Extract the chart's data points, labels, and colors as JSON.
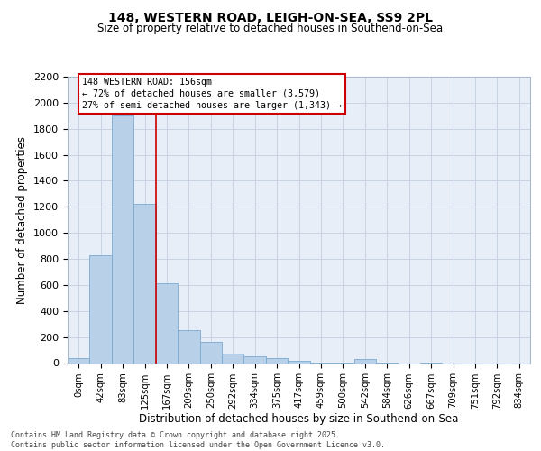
{
  "title1": "148, WESTERN ROAD, LEIGH-ON-SEA, SS9 2PL",
  "title2": "Size of property relative to detached houses in Southend-on-Sea",
  "xlabel": "Distribution of detached houses by size in Southend-on-Sea",
  "ylabel": "Number of detached properties",
  "bin_labels": [
    "0sqm",
    "42sqm",
    "83sqm",
    "125sqm",
    "167sqm",
    "209sqm",
    "250sqm",
    "292sqm",
    "334sqm",
    "375sqm",
    "417sqm",
    "459sqm",
    "500sqm",
    "542sqm",
    "584sqm",
    "626sqm",
    "667sqm",
    "709sqm",
    "751sqm",
    "792sqm",
    "834sqm"
  ],
  "bar_heights": [
    40,
    830,
    1900,
    1220,
    610,
    250,
    160,
    70,
    55,
    40,
    20,
    5,
    5,
    30,
    5,
    0,
    5,
    0,
    0,
    0,
    0
  ],
  "bar_color": "#b8d0e8",
  "bar_edge_color": "#7aaad0",
  "grid_color": "#c8d4e4",
  "background_color": "#e8eef8",
  "annotation_box_color": "#ffffff",
  "annotation_border_color": "#cc0000",
  "red_line_x": 3.5,
  "annotation_text1": "148 WESTERN ROAD: 156sqm",
  "annotation_text2": "← 72% of detached houses are smaller (3,579)",
  "annotation_text3": "27% of semi-detached houses are larger (1,343) →",
  "ylim": [
    0,
    2200
  ],
  "yticks": [
    0,
    200,
    400,
    600,
    800,
    1000,
    1200,
    1400,
    1600,
    1800,
    2000,
    2200
  ],
  "footer1": "Contains HM Land Registry data © Crown copyright and database right 2025.",
  "footer2": "Contains public sector information licensed under the Open Government Licence v3.0."
}
